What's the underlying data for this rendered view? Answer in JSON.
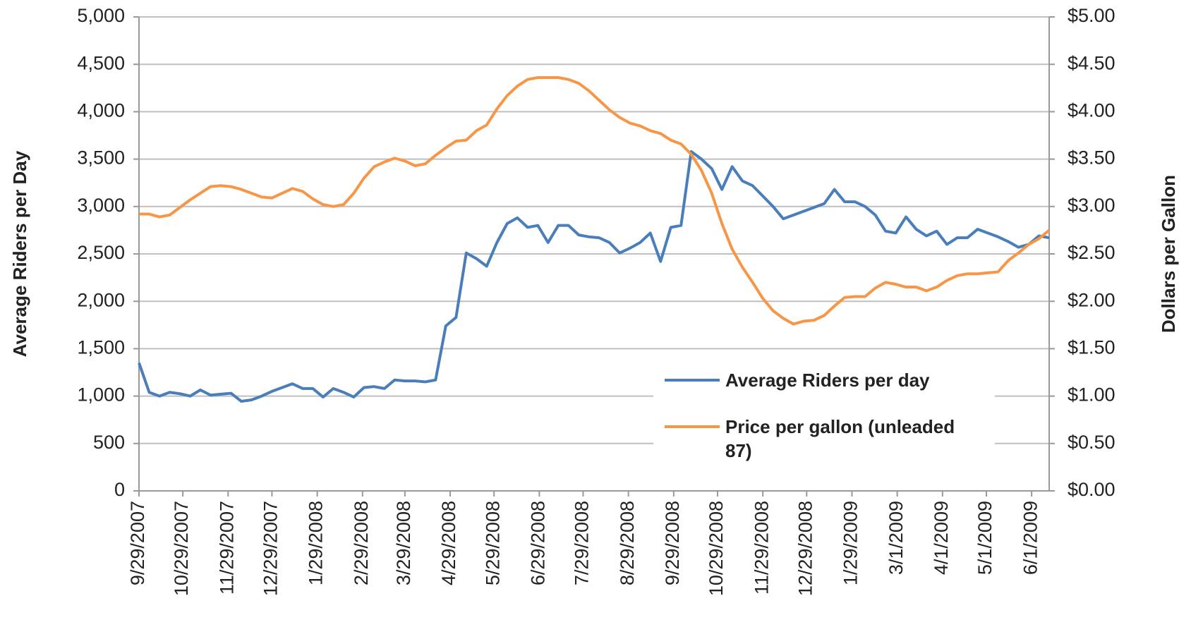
{
  "chart_data": {
    "type": "line",
    "ylabel": "Average Riders per Day",
    "y2label": "Dollars per Gallon",
    "x": [
      "9/29/2007",
      "10/6/2007",
      "10/13/2007",
      "10/20/2007",
      "10/27/2007",
      "11/3/2007",
      "11/10/2007",
      "11/17/2007",
      "11/24/2007",
      "12/1/2007",
      "12/8/2007",
      "12/15/2007",
      "12/22/2007",
      "12/29/2007",
      "1/5/2008",
      "1/12/2008",
      "1/19/2008",
      "1/26/2008",
      "2/2/2008",
      "2/9/2008",
      "2/16/2008",
      "2/23/2008",
      "3/1/2008",
      "3/8/2008",
      "3/15/2008",
      "3/22/2008",
      "3/29/2008",
      "4/5/2008",
      "4/12/2008",
      "4/19/2008",
      "4/26/2008",
      "5/3/2008",
      "5/10/2008",
      "5/17/2008",
      "5/24/2008",
      "5/31/2008",
      "6/7/2008",
      "6/14/2008",
      "6/21/2008",
      "6/28/2008",
      "7/5/2008",
      "7/12/2008",
      "7/19/2008",
      "7/26/2008",
      "8/2/2008",
      "8/9/2008",
      "8/16/2008",
      "8/23/2008",
      "8/30/2008",
      "9/6/2008",
      "9/13/2008",
      "9/20/2008",
      "9/27/2008",
      "10/4/2008",
      "10/11/2008",
      "10/18/2008",
      "10/25/2008",
      "11/1/2008",
      "11/8/2008",
      "11/15/2008",
      "11/22/2008",
      "11/29/2008",
      "12/6/2008",
      "12/13/2008",
      "12/20/2008",
      "12/27/2008",
      "1/3/2009",
      "1/10/2009",
      "1/17/2009",
      "1/24/2009",
      "1/31/2009",
      "2/7/2009",
      "2/14/2009",
      "2/21/2009",
      "2/28/2009",
      "3/7/2009",
      "3/14/2009",
      "3/21/2009",
      "3/28/2009",
      "4/4/2009",
      "4/11/2009",
      "4/18/2009",
      "4/25/2009",
      "5/2/2009",
      "5/9/2009",
      "5/16/2009",
      "5/23/2009",
      "5/30/2009",
      "6/6/2009",
      "6/13/2009"
    ],
    "series": [
      {
        "name": "Average Riders per day",
        "color": "#4a7ebb",
        "values": [
          1350,
          1040,
          1000,
          1040,
          1025,
          1000,
          1065,
          1010,
          1020,
          1030,
          945,
          960,
          1000,
          1050,
          1090,
          1130,
          1080,
          1080,
          990,
          1080,
          1040,
          990,
          1090,
          1100,
          1080,
          1170,
          1160,
          1160,
          1150,
          1170,
          1740,
          1830,
          2510,
          2450,
          2370,
          2620,
          2820,
          2880,
          2780,
          2800,
          2620,
          2800,
          2800,
          2700,
          2680,
          2670,
          2620,
          2510,
          2560,
          2620,
          2720,
          2420,
          2780,
          2800,
          3580,
          3500,
          3400,
          3180,
          3420,
          3270,
          3220,
          3110,
          3000,
          2870,
          2910,
          2950,
          2990,
          3030,
          3180,
          3050,
          3050,
          3000,
          2910,
          2740,
          2720,
          2890,
          2760,
          2690,
          2740,
          2600,
          2670,
          2670,
          2760,
          2720,
          2680,
          2630,
          2570,
          2600,
          2690,
          2670
        ]
      },
      {
        "name": "Price per gallon (unleaded 87)",
        "color": "#f79646",
        "axis": "y2",
        "values": [
          2.92,
          2.92,
          2.89,
          2.91,
          2.99,
          3.07,
          3.14,
          3.21,
          3.22,
          3.21,
          3.18,
          3.14,
          3.1,
          3.09,
          3.14,
          3.19,
          3.16,
          3.08,
          3.02,
          3.0,
          3.02,
          3.14,
          3.3,
          3.42,
          3.47,
          3.51,
          3.48,
          3.43,
          3.45,
          3.54,
          3.62,
          3.69,
          3.7,
          3.8,
          3.86,
          4.03,
          4.17,
          4.27,
          4.34,
          4.36,
          4.36,
          4.36,
          4.34,
          4.3,
          4.22,
          4.12,
          4.02,
          3.94,
          3.88,
          3.85,
          3.8,
          3.77,
          3.7,
          3.66,
          3.55,
          3.38,
          3.14,
          2.82,
          2.55,
          2.36,
          2.2,
          2.03,
          1.9,
          1.82,
          1.76,
          1.79,
          1.8,
          1.85,
          1.95,
          2.04,
          2.05,
          2.05,
          2.14,
          2.2,
          2.18,
          2.15,
          2.15,
          2.11,
          2.15,
          2.22,
          2.27,
          2.29,
          2.29,
          2.3,
          2.31,
          2.43,
          2.51,
          2.6,
          2.66,
          2.75
        ]
      }
    ],
    "xlim": [
      "9/29/2007",
      "6/13/2009"
    ],
    "xticks": [
      "9/29/2007",
      "10/29/2007",
      "11/29/2007",
      "12/29/2007",
      "1/29/2008",
      "2/29/2008",
      "3/29/2008",
      "4/29/2008",
      "5/29/2008",
      "6/29/2008",
      "7/29/2008",
      "8/29/2008",
      "9/29/2008",
      "10/29/2008",
      "11/29/2008",
      "12/29/2008",
      "1/29/2009",
      "3/1/2009",
      "4/1/2009",
      "5/1/2009",
      "6/1/2009"
    ],
    "ylim": [
      0,
      5000
    ],
    "yticks": [
      0,
      500,
      {
        "value": 1000,
        "label": "1,000"
      },
      {
        "value": 1500,
        "label": "1,500"
      },
      {
        "value": 2000,
        "label": "2,000"
      },
      {
        "value": 2500,
        "label": "2,500"
      },
      {
        "value": 3000,
        "label": "3,000"
      },
      {
        "value": 3500,
        "label": "3,500"
      },
      {
        "value": 4000,
        "label": "4,000"
      },
      {
        "value": 4500,
        "label": "4,500"
      },
      {
        "value": 5000,
        "label": "5,000"
      }
    ],
    "y2lim": [
      0,
      5
    ],
    "y2ticks": [
      {
        "value": 0,
        "label": "$0.00"
      },
      {
        "value": 0.5,
        "label": "$0.50"
      },
      {
        "value": 1,
        "label": "$1.00"
      },
      {
        "value": 1.5,
        "label": "$1.50"
      },
      {
        "value": 2,
        "label": "$2.00"
      },
      {
        "value": 2.5,
        "label": "$2.50"
      },
      {
        "value": 3,
        "label": "$3.00"
      },
      {
        "value": 3.5,
        "label": "$3.50"
      },
      {
        "value": 4,
        "label": "$4.00"
      },
      {
        "value": 4.5,
        "label": "$4.50"
      },
      {
        "value": 5,
        "label": "$5.00"
      }
    ],
    "grid": true
  }
}
